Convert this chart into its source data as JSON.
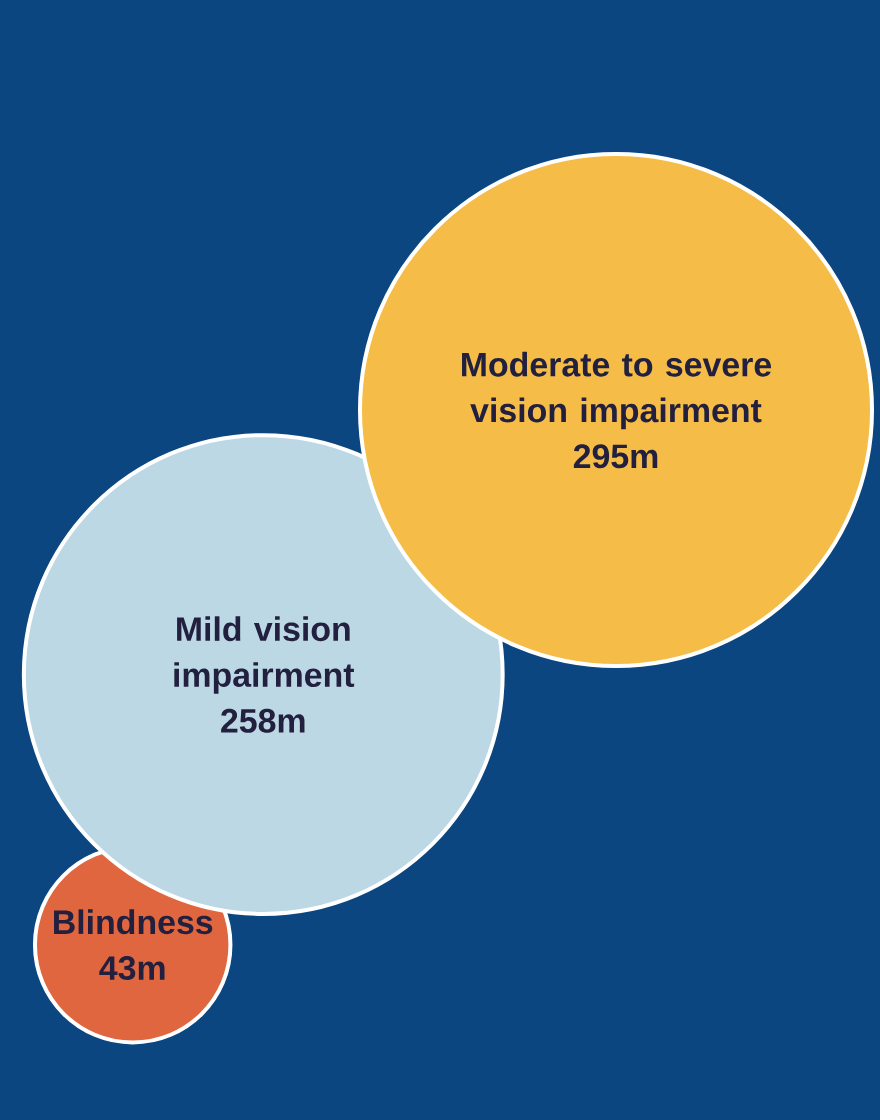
{
  "chart_data": {
    "type": "other",
    "categories": [
      "Moderate to severe vision impairment",
      "Mild vision impairment",
      "Blindness"
    ],
    "values": [
      295,
      258,
      43
    ],
    "value_labels": [
      "295m",
      "258m",
      "43m"
    ],
    "colors": [
      "#f5bd48",
      "#bcd8e5",
      "#e0663f"
    ]
  }
}
